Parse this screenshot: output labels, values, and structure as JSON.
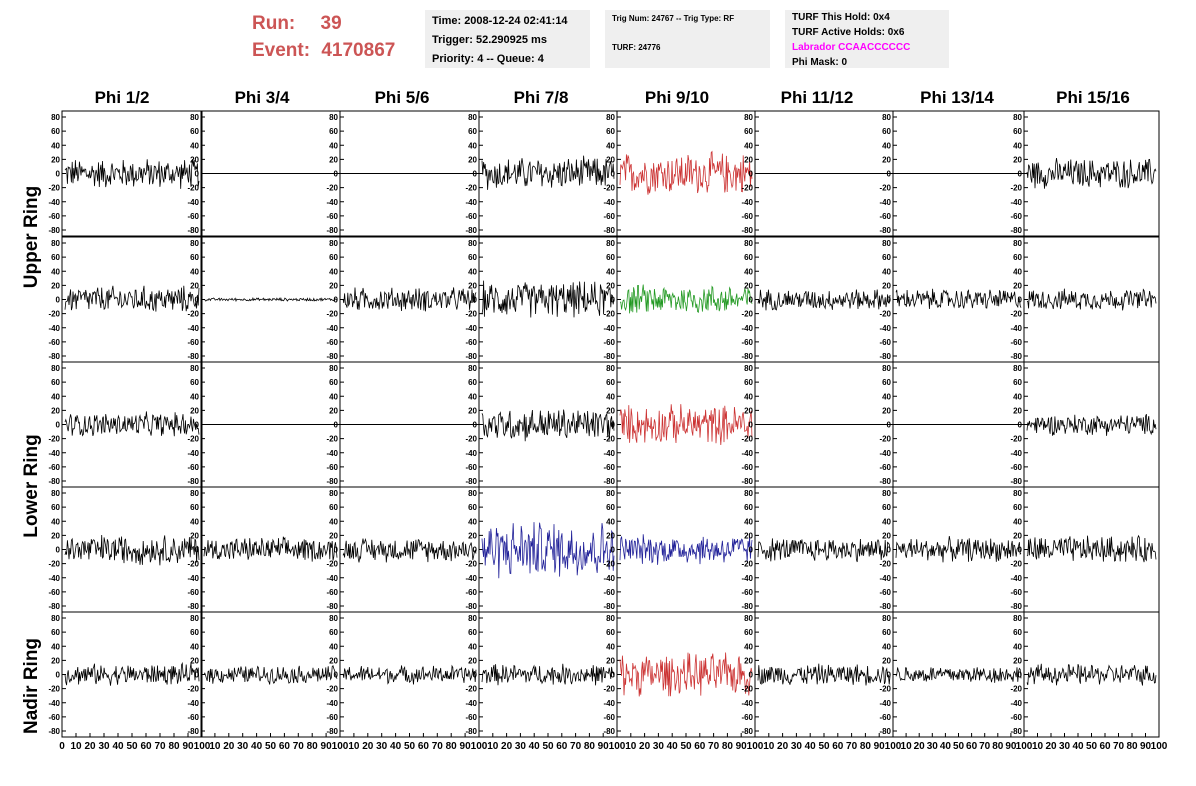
{
  "header": {
    "run_label": "Run:",
    "run_value": "39",
    "event_label": "Event:",
    "event_value": "4170867"
  },
  "time_box": {
    "time": "Time: 2008-12-24 02:41:14",
    "trigger": "Trigger: 52.290925 ms",
    "priority": "Priority: 4 -- Queue: 4"
  },
  "trig_box": {
    "trig": "Trig Num: 24767 -- Trig Type: RF",
    "turf": "TURF: 24776"
  },
  "turf_box": {
    "this_hold": "TURF This Hold: 0x4",
    "active_holds": "TURF Active Holds: 0x6",
    "labrador": "Labrador CCAACCCCCC",
    "phi_mask": "Phi Mask: 0"
  },
  "columns": [
    "Phi 1/2",
    "Phi 3/4",
    "Phi 5/6",
    "Phi 7/8",
    "Phi 9/10",
    "Phi 11/12",
    "Phi 13/14",
    "Phi 15/16"
  ],
  "ring_labels": [
    "Upper Ring",
    "Lower Ring",
    "Nadir Ring"
  ],
  "y_ticks": [
    "80",
    "60",
    "40",
    "20",
    "0",
    "-20",
    "-40",
    "-60",
    "-80"
  ],
  "x_ticks": [
    "0",
    "10",
    "20",
    "30",
    "40",
    "50",
    "60",
    "70",
    "80",
    "90",
    "100"
  ],
  "colors": {
    "default_trace": "#000000",
    "red_trace": "#cc3333",
    "green_trace": "#229922",
    "blue_trace": "#222299",
    "run_text": "#cc5555",
    "labrador_text": "#ff00ff",
    "info_bg": "#efefef"
  },
  "panels": [
    [
      "black",
      "flat",
      "flat",
      "black",
      "red",
      "flat",
      "flat",
      "black"
    ],
    [
      "black",
      "smallblack",
      "black",
      "black",
      "green",
      "black",
      "black",
      "black"
    ],
    [
      "black",
      "flat",
      "flat",
      "black",
      "red",
      "flat",
      "flat",
      "black"
    ],
    [
      "black",
      "black",
      "black",
      "blue",
      "blue",
      "black",
      "black",
      "black"
    ],
    [
      "black",
      "black",
      "black",
      "black",
      "red",
      "black",
      "black",
      "black"
    ]
  ],
  "panel_amplitudes": [
    [
      20,
      0,
      0,
      22,
      28,
      0,
      0,
      20
    ],
    [
      18,
      2,
      16,
      24,
      20,
      14,
      14,
      14
    ],
    [
      16,
      0,
      0,
      22,
      26,
      0,
      0,
      14
    ],
    [
      20,
      16,
      16,
      38,
      20,
      16,
      16,
      18
    ],
    [
      14,
      12,
      12,
      14,
      28,
      14,
      12,
      14
    ]
  ]
}
